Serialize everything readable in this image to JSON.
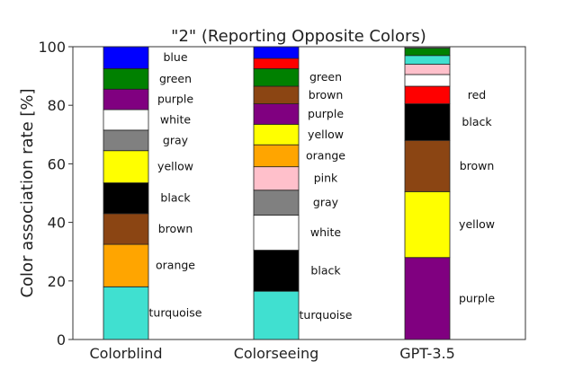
{
  "chart_data": {
    "type": "bar",
    "stacked": true,
    "title": "\"2\" (Reporting Opposite Colors)",
    "xlabel": "",
    "ylabel": "Color association rate [%]",
    "ylim": [
      0,
      100
    ],
    "yticks": [
      0,
      20,
      40,
      60,
      80,
      100
    ],
    "grid": false,
    "categories": [
      "Colorblind",
      "Colorseeing",
      "GPT-3.5"
    ],
    "bars": [
      {
        "category": "Colorblind",
        "segments": [
          {
            "label": "turquoise",
            "value": 18,
            "color": "#40e0d0"
          },
          {
            "label": "orange",
            "value": 14.5,
            "color": "#ffa500"
          },
          {
            "label": "brown",
            "value": 10.5,
            "color": "#8b4513"
          },
          {
            "label": "black",
            "value": 10.5,
            "color": "#000000"
          },
          {
            "label": "yellow",
            "value": 11,
            "color": "#ffff00"
          },
          {
            "label": "gray",
            "value": 7,
            "color": "#808080"
          },
          {
            "label": "white",
            "value": 7,
            "color": "#ffffff"
          },
          {
            "label": "purple",
            "value": 7,
            "color": "#800080"
          },
          {
            "label": "green",
            "value": 7,
            "color": "#008000"
          },
          {
            "label": "blue",
            "value": 7.5,
            "color": "#0000ff"
          }
        ]
      },
      {
        "category": "Colorseeing",
        "segments": [
          {
            "label": "turquoise",
            "value": 16.5,
            "color": "#40e0d0"
          },
          {
            "label": "black",
            "value": 14,
            "color": "#000000"
          },
          {
            "label": "white",
            "value": 12,
            "color": "#ffffff"
          },
          {
            "label": "gray",
            "value": 8.5,
            "color": "#808080"
          },
          {
            "label": "pink",
            "value": 8,
            "color": "#ffc0cb"
          },
          {
            "label": "orange",
            "value": 7.5,
            "color": "#ffa500"
          },
          {
            "label": "yellow",
            "value": 7,
            "color": "#ffff00"
          },
          {
            "label": "purple",
            "value": 7,
            "color": "#800080"
          },
          {
            "label": "brown",
            "value": 6,
            "color": "#8b4513"
          },
          {
            "label": "green",
            "value": 6,
            "color": "#008000"
          },
          {
            "label": "",
            "value": 3.5,
            "color": "#ff0000"
          },
          {
            "label": "",
            "value": 4,
            "color": "#0000ff"
          }
        ]
      },
      {
        "category": "GPT-3.5",
        "segments": [
          {
            "label": "purple",
            "value": 28,
            "color": "#800080"
          },
          {
            "label": "yellow",
            "value": 22.5,
            "color": "#ffff00"
          },
          {
            "label": "brown",
            "value": 17.5,
            "color": "#8b4513"
          },
          {
            "label": "black",
            "value": 12.5,
            "color": "#000000"
          },
          {
            "label": "red",
            "value": 6,
            "color": "#ff0000"
          },
          {
            "label": "",
            "value": 4,
            "color": "#ffffff"
          },
          {
            "label": "",
            "value": 3.5,
            "color": "#ffc0cb"
          },
          {
            "label": "",
            "value": 3,
            "color": "#40e0d0"
          },
          {
            "label": "",
            "value": 2.5,
            "color": "#008000"
          },
          {
            "label": "",
            "value": 0.5,
            "color": "#808080"
          }
        ]
      }
    ]
  }
}
